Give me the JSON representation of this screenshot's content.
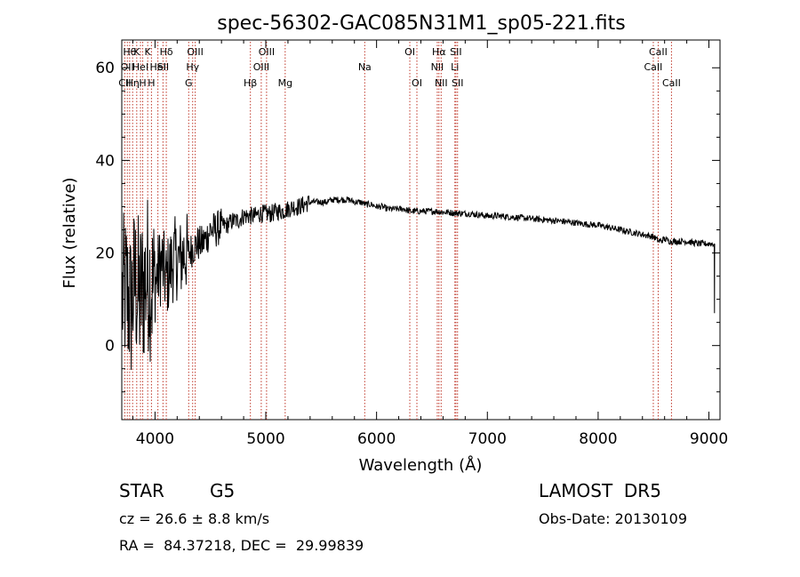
{
  "chart_data": {
    "type": "line",
    "title": "spec-56302-GAC085N31M1_sp05-221.fits",
    "xlabel": "Wavelength (Å)",
    "ylabel": "Flux (relative)",
    "xlim": [
      3700,
      9100
    ],
    "ylim": [
      -16,
      66
    ],
    "xticks": [
      4000,
      5000,
      6000,
      7000,
      8000,
      9000
    ],
    "yticks": [
      0,
      20,
      40,
      60
    ],
    "grid": false,
    "series": [
      {
        "x": [
          3700,
          3740,
          3780,
          3820,
          3860,
          3900,
          3940,
          3980,
          4020,
          4060,
          4100,
          4140,
          4180,
          4220,
          4260,
          4300,
          4340,
          4380,
          4420,
          4460,
          4500,
          4550,
          4600,
          4650,
          4700,
          4750,
          4800,
          4850,
          4900,
          4950,
          5000,
          5050,
          5100,
          5150,
          5200,
          5250,
          5300,
          5350,
          5400,
          5450,
          5500,
          5550,
          5600,
          5650,
          5700,
          5750,
          5800,
          5850,
          5900,
          5950,
          6000,
          6050,
          6100,
          6150,
          6200,
          6250,
          6300,
          6350,
          6400,
          6450,
          6500,
          6550,
          6600,
          6650,
          6700,
          6750,
          6800,
          6850,
          6900,
          6950,
          7000,
          7100,
          7200,
          7300,
          7400,
          7500,
          7600,
          7700,
          7800,
          7900,
          8000,
          8100,
          8200,
          8300,
          8400,
          8500,
          8550,
          8600,
          8650,
          8700,
          8800,
          8900,
          9000,
          9040,
          9050
        ],
        "y": [
          10,
          12,
          8,
          14,
          10,
          13,
          16,
          12,
          15,
          18,
          14,
          17,
          19,
          18,
          20,
          20,
          21,
          22,
          22,
          23,
          25,
          25,
          26,
          26,
          27,
          27,
          28,
          28,
          28,
          28.5,
          28.5,
          28.5,
          29,
          29,
          29.5,
          30,
          30,
          30.5,
          31,
          31,
          31,
          31,
          31.5,
          31.5,
          31.5,
          31.5,
          31,
          31,
          30.5,
          30.5,
          30,
          30,
          29.5,
          29.5,
          29.5,
          29.5,
          29,
          29,
          29,
          29,
          29,
          29,
          28.8,
          28.8,
          28.6,
          28.6,
          28.5,
          28.5,
          28.3,
          28.2,
          28,
          28,
          27.8,
          27.6,
          27.4,
          27.2,
          27,
          26.8,
          26.5,
          26.2,
          26,
          25.5,
          25,
          24.5,
          24,
          23.5,
          22.5,
          23,
          22.5,
          22.5,
          22.5,
          22,
          22,
          22,
          7
        ]
      }
    ],
    "annotations": [
      "Hθ",
      "K",
      "Hδ",
      "OII",
      "OIII",
      "OII",
      "HeI",
      "SII",
      "Hγ",
      "OIII",
      "OI",
      "Hα",
      "SII",
      "CaII",
      "Hη",
      "H",
      "G",
      "Hβ",
      "Mg",
      "Na",
      "OI",
      "NII",
      "Li",
      "CaII",
      "NII",
      "SII",
      "CaII",
      "CII"
    ]
  },
  "lines": [
    {
      "w": 3727,
      "label": "CII",
      "row": 3
    },
    {
      "w": 3750,
      "label": "OII",
      "row": 2
    },
    {
      "w": 3771,
      "label": "Hθ",
      "row": 1
    },
    {
      "w": 3798,
      "label": "Hη",
      "row": 3
    },
    {
      "w": 3835,
      "label": "K",
      "row": 1
    },
    {
      "w": 3869,
      "label": "HeI",
      "row": 2
    },
    {
      "w": 3889,
      "label": "H",
      "row": 3
    },
    {
      "w": 3934,
      "label": "K",
      "row": 1
    },
    {
      "w": 3968,
      "label": "H",
      "row": 3
    },
    {
      "w": 4026,
      "label": "HeI",
      "row": 2
    },
    {
      "w": 4072,
      "label": "SII",
      "row": 2
    },
    {
      "w": 4102,
      "label": "Hδ",
      "row": 1
    },
    {
      "w": 4304,
      "label": "G",
      "row": 3
    },
    {
      "w": 4340,
      "label": "Hγ",
      "row": 2
    },
    {
      "w": 4363,
      "label": "OIII",
      "row": 1
    },
    {
      "w": 4861,
      "label": "Hβ",
      "row": 3
    },
    {
      "w": 4959,
      "label": "OIII",
      "row": 2
    },
    {
      "w": 5007,
      "label": "OIII",
      "row": 1
    },
    {
      "w": 5175,
      "label": "Mg",
      "row": 3
    },
    {
      "w": 5893,
      "label": "Na",
      "row": 2
    },
    {
      "w": 6300,
      "label": "OI",
      "row": 1
    },
    {
      "w": 6364,
      "label": "OI",
      "row": 3
    },
    {
      "w": 6548,
      "label": "NII",
      "row": 2
    },
    {
      "w": 6563,
      "label": "Hα",
      "row": 1
    },
    {
      "w": 6583,
      "label": "NII",
      "row": 3
    },
    {
      "w": 6707,
      "label": "Li",
      "row": 2
    },
    {
      "w": 6716,
      "label": "SII",
      "row": 1
    },
    {
      "w": 6731,
      "label": "SII",
      "row": 3
    },
    {
      "w": 8498,
      "label": "CaII",
      "row": 2
    },
    {
      "w": 8542,
      "label": "CaII",
      "row": 1
    },
    {
      "w": 8662,
      "label": "CaII",
      "row": 3
    }
  ],
  "info": {
    "object_class": "STAR",
    "subclass": "G5",
    "survey": "LAMOST  DR5",
    "redshift": "cz = 26.6 ± 8.8 km/s",
    "obs_date": "Obs-Date: 20130109",
    "coords": "RA =  84.37218, DEC =  29.99839"
  }
}
